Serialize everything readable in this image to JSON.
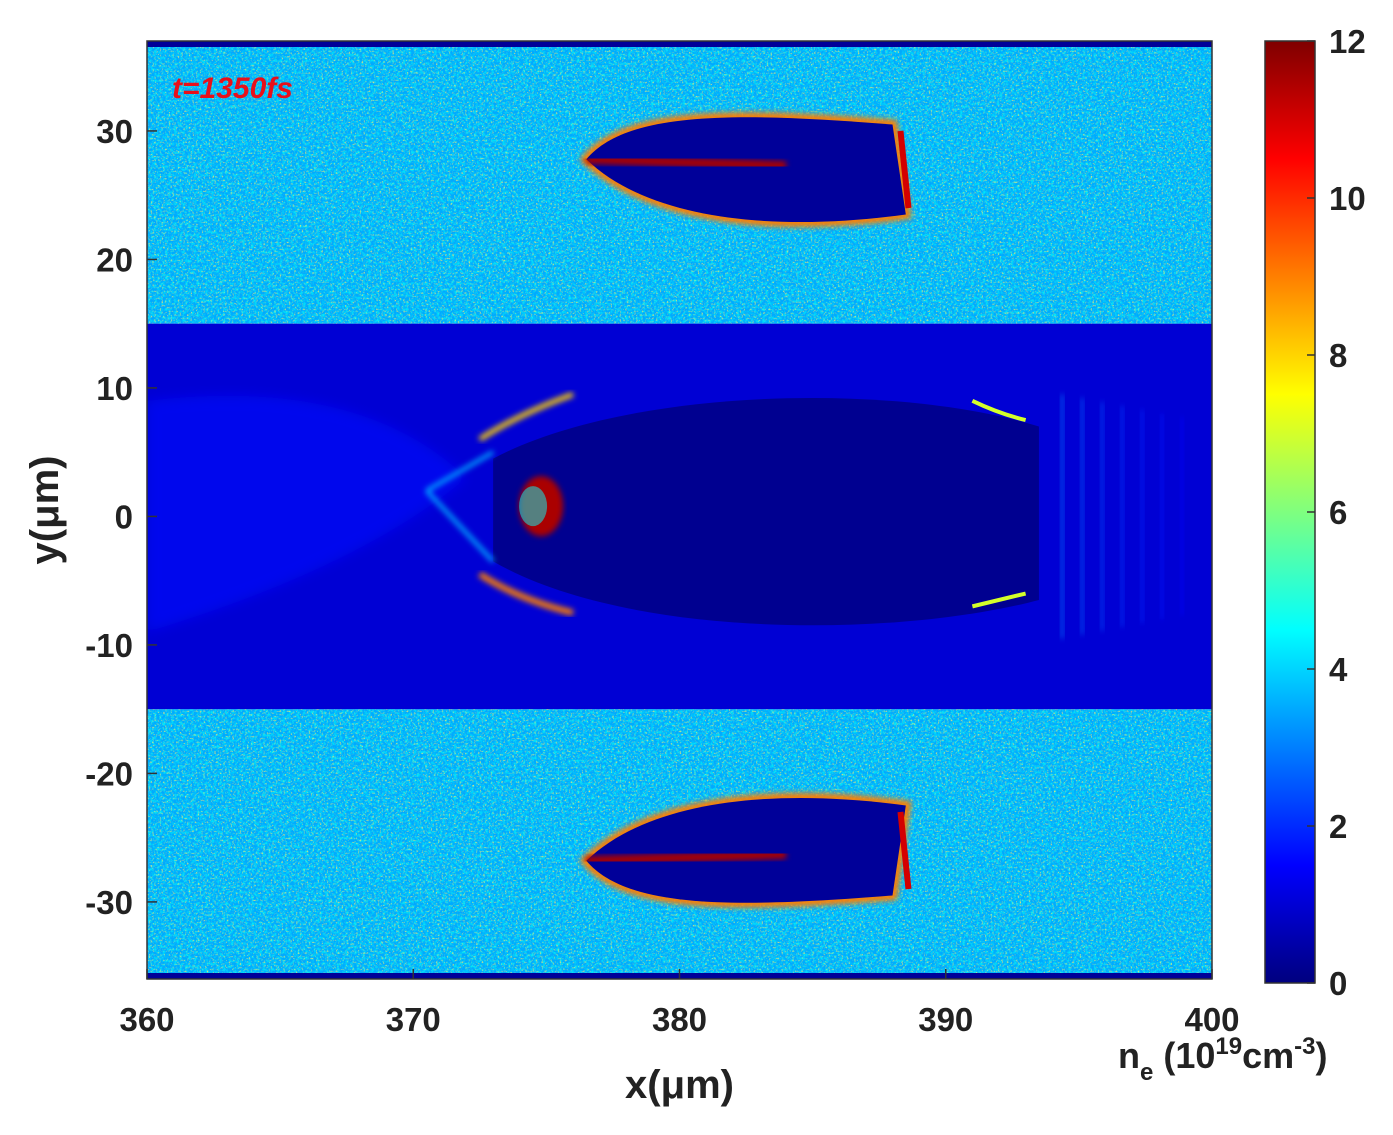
{
  "chart_data": {
    "type": "heatmap",
    "title": "",
    "annotation": "t=1350fs",
    "xlabel": "x(μm)",
    "ylabel": "y(μm)",
    "xlim": [
      360,
      400
    ],
    "ylim": [
      -36,
      37
    ],
    "x_ticks": [
      "360",
      "370",
      "380",
      "390",
      "400"
    ],
    "x_tick_values": [
      360,
      370,
      380,
      390,
      400
    ],
    "y_ticks": [
      "30",
      "20",
      "10",
      "0",
      "-10",
      "-20",
      "-30"
    ],
    "y_tick_values": [
      30,
      20,
      10,
      0,
      -10,
      -20,
      -30
    ],
    "colorbar": {
      "label_base": "n",
      "label_sub": "e",
      "label_unit_pre": " (10",
      "label_exp": "19",
      "label_unit_mid": "cm",
      "label_exp2": "-3",
      "label_unit_post": ")",
      "ticks": [
        "12",
        "10",
        "8",
        "6",
        "4",
        "2",
        "0"
      ],
      "tick_values": [
        12,
        10,
        8,
        6,
        4,
        2,
        0
      ],
      "range": [
        0,
        12
      ],
      "colormap": "jet",
      "colors": [
        "#00007f",
        "#0000ff",
        "#007fff",
        "#00ffff",
        "#7fff7f",
        "#ffff00",
        "#ff7f00",
        "#ff0000",
        "#7f0000"
      ]
    },
    "regions": {
      "background_density_outer": 3.5,
      "channel_y_range": [
        -15,
        15
      ],
      "channel_density": 1.0,
      "cavity_density": 0.2,
      "cavity_x_range": [
        373,
        394
      ],
      "upper_void_center": [
        384,
        27
      ],
      "lower_void_center": [
        384,
        -26
      ],
      "shell_density_max": 12
    }
  }
}
